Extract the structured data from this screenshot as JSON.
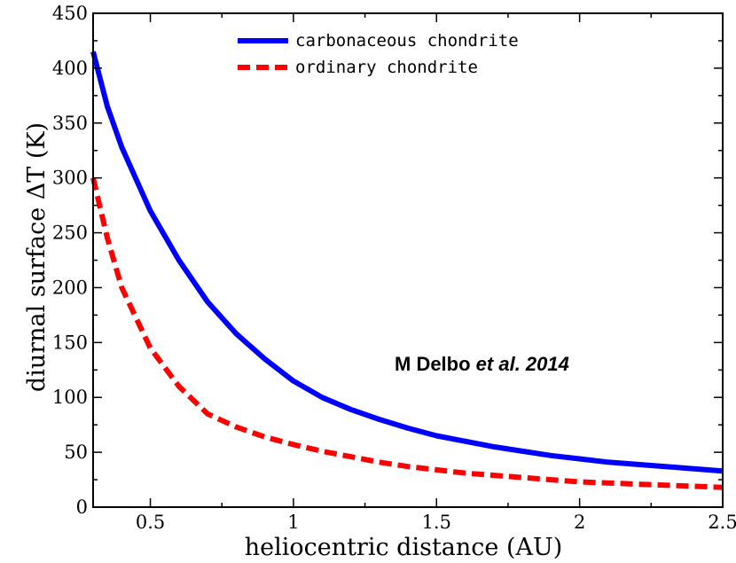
{
  "chart_data": {
    "type": "line",
    "title": "",
    "xlabel": "heliocentric distance (AU)",
    "ylabel": "diurnal surface ΔT (K)",
    "xlim": [
      0.3,
      2.5
    ],
    "ylim": [
      0,
      450
    ],
    "xticks": [
      0.5,
      1,
      1.5,
      2,
      2.5
    ],
    "xtick_labels": [
      "0.5",
      "1",
      "1.5",
      "2",
      "2.5"
    ],
    "yticks": [
      0,
      50,
      100,
      150,
      200,
      250,
      300,
      350,
      400,
      450
    ],
    "ytick_labels": [
      "0",
      "50",
      "100",
      "150",
      "200",
      "250",
      "300",
      "350",
      "400",
      "450"
    ],
    "grid": false,
    "legend_position": "top-center",
    "annotation": {
      "text_regular": "M Delbo ",
      "text_italic": "et al. 2014"
    },
    "series": [
      {
        "name": "carbonaceous chondrite",
        "color": "#0000ff",
        "style": "solid",
        "x": [
          0.3,
          0.35,
          0.4,
          0.5,
          0.6,
          0.7,
          0.8,
          0.9,
          1.0,
          1.1,
          1.2,
          1.3,
          1.4,
          1.5,
          1.6,
          1.7,
          1.8,
          1.9,
          2.0,
          2.1,
          2.2,
          2.3,
          2.4,
          2.5
        ],
        "y": [
          415,
          365,
          328,
          270,
          225,
          187,
          158,
          135,
          115,
          100,
          89,
          80,
          72,
          65,
          60,
          55,
          51,
          47,
          44,
          41,
          39,
          37,
          35,
          33
        ]
      },
      {
        "name": "ordinary chondrite",
        "color": "#ff0000",
        "style": "dashed",
        "x": [
          0.3,
          0.35,
          0.4,
          0.5,
          0.6,
          0.7,
          0.8,
          0.9,
          1.0,
          1.1,
          1.2,
          1.3,
          1.4,
          1.5,
          1.6,
          1.7,
          1.8,
          1.9,
          2.0,
          2.1,
          2.2,
          2.3,
          2.4,
          2.5
        ],
        "y": [
          300,
          245,
          200,
          145,
          110,
          85,
          73,
          64,
          57,
          51,
          46,
          41,
          37,
          34,
          31,
          29,
          27,
          25,
          23,
          22,
          21,
          20,
          19,
          18
        ]
      }
    ]
  }
}
